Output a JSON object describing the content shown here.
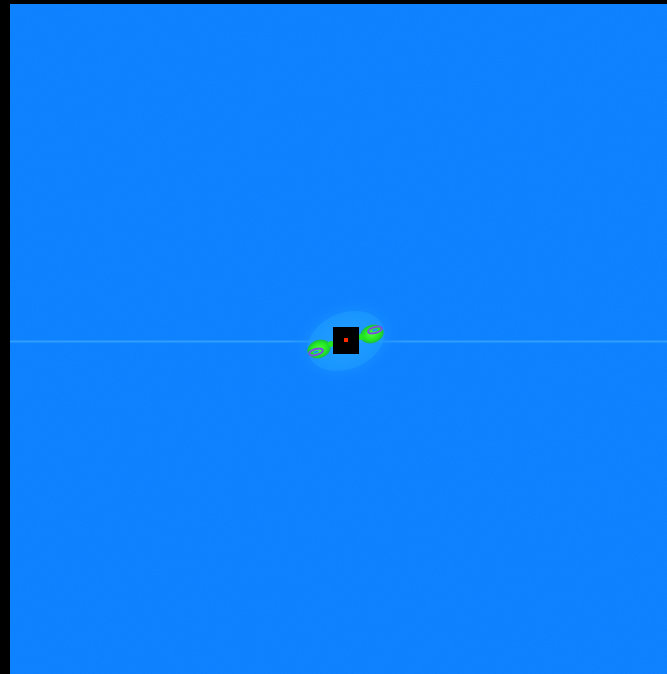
{
  "image": {
    "kind": "2D frequency-domain (FFT) magnitude spectrum, false-color",
    "colors": {
      "border": "#000000",
      "background_blue": "#0a7cff",
      "halo_blue": "#1a94ff",
      "axis_line": "#2a9cff",
      "green_lobe": "#22e622",
      "lobe_outline": "#7a52e0",
      "dc_square": "#000000",
      "dc_center": "#ff2a00"
    },
    "features": [
      "horizontal-axis-line",
      "central-dc-peak",
      "left-green-lobe",
      "right-green-lobe",
      "diffuse-halo"
    ]
  }
}
